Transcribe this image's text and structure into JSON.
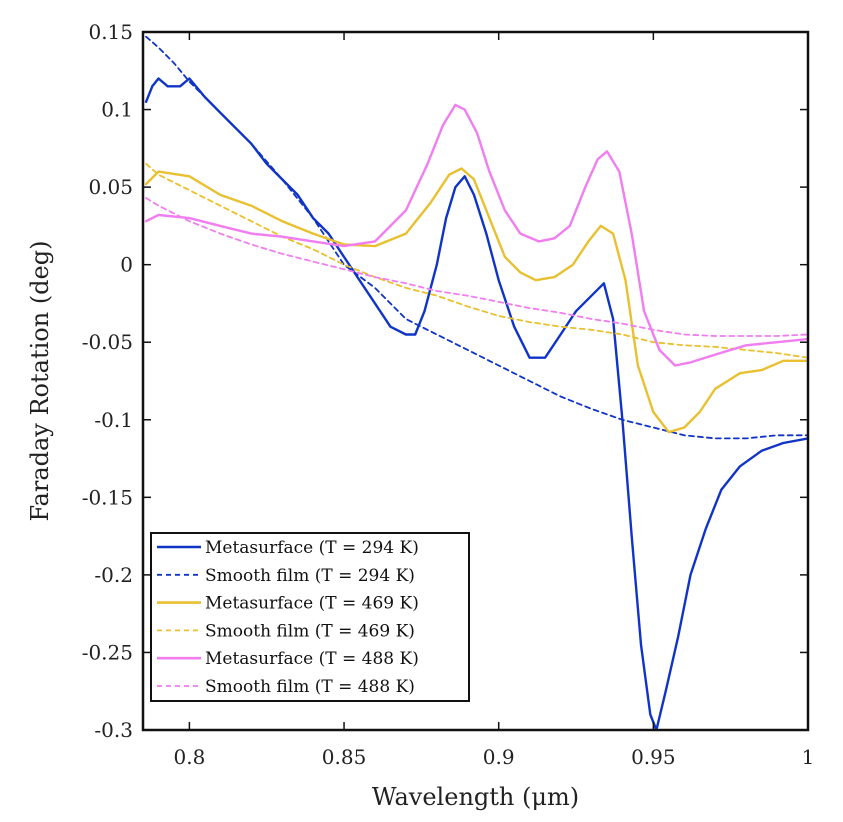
{
  "chart_data": {
    "type": "line",
    "xlabel": "Wavelength (μm)",
    "ylabel": "Faraday Rotation (deg)",
    "xlim": [
      0.785,
      1.0
    ],
    "ylim": [
      -0.3,
      0.15
    ],
    "xticks": [
      0.8,
      0.85,
      0.9,
      0.95,
      1.0
    ],
    "xtick_labels": [
      "0.8",
      "0.85",
      "0.9",
      "0.95",
      "1"
    ],
    "yticks": [
      0.15,
      0.1,
      0.05,
      0,
      -0.05,
      -0.1,
      -0.15,
      -0.2,
      -0.25,
      -0.3
    ],
    "ytick_labels": [
      "0.15",
      "0.1",
      "0.05",
      "0",
      "-0.05",
      "-0.1",
      "-0.15",
      "-0.2",
      "-0.25",
      "-0.3"
    ],
    "grid": false,
    "legend_position": "bottom-left",
    "series": [
      {
        "name": "Metasurface (T = 294 K)",
        "color": "#1034c8",
        "style": "solid",
        "points": [
          [
            0.786,
            0.105
          ],
          [
            0.788,
            0.115
          ],
          [
            0.79,
            0.12
          ],
          [
            0.793,
            0.115
          ],
          [
            0.797,
            0.115
          ],
          [
            0.8,
            0.12
          ],
          [
            0.805,
            0.108
          ],
          [
            0.81,
            0.098
          ],
          [
            0.815,
            0.088
          ],
          [
            0.82,
            0.078
          ],
          [
            0.825,
            0.065
          ],
          [
            0.83,
            0.055
          ],
          [
            0.835,
            0.045
          ],
          [
            0.84,
            0.03
          ],
          [
            0.845,
            0.02
          ],
          [
            0.85,
            0.005
          ],
          [
            0.855,
            -0.01
          ],
          [
            0.86,
            -0.025
          ],
          [
            0.865,
            -0.04
          ],
          [
            0.87,
            -0.045
          ],
          [
            0.873,
            -0.045
          ],
          [
            0.876,
            -0.03
          ],
          [
            0.88,
            0.0
          ],
          [
            0.883,
            0.03
          ],
          [
            0.886,
            0.05
          ],
          [
            0.889,
            0.057
          ],
          [
            0.892,
            0.045
          ],
          [
            0.896,
            0.02
          ],
          [
            0.9,
            -0.01
          ],
          [
            0.905,
            -0.04
          ],
          [
            0.91,
            -0.06
          ],
          [
            0.915,
            -0.06
          ],
          [
            0.92,
            -0.045
          ],
          [
            0.925,
            -0.03
          ],
          [
            0.93,
            -0.02
          ],
          [
            0.934,
            -0.012
          ],
          [
            0.937,
            -0.035
          ],
          [
            0.94,
            -0.1
          ],
          [
            0.943,
            -0.175
          ],
          [
            0.946,
            -0.245
          ],
          [
            0.949,
            -0.29
          ],
          [
            0.951,
            -0.3
          ],
          [
            0.954,
            -0.275
          ],
          [
            0.958,
            -0.24
          ],
          [
            0.962,
            -0.2
          ],
          [
            0.967,
            -0.17
          ],
          [
            0.972,
            -0.145
          ],
          [
            0.978,
            -0.13
          ],
          [
            0.985,
            -0.12
          ],
          [
            0.992,
            -0.115
          ],
          [
            1.0,
            -0.112
          ]
        ]
      },
      {
        "name": "Smooth film (T = 294 K)",
        "color": "#1034c8",
        "style": "dashed",
        "points": [
          [
            0.786,
            0.147
          ],
          [
            0.79,
            0.14
          ],
          [
            0.795,
            0.13
          ],
          [
            0.8,
            0.118
          ],
          [
            0.81,
            0.098
          ],
          [
            0.82,
            0.078
          ],
          [
            0.83,
            0.055
          ],
          [
            0.84,
            0.03
          ],
          [
            0.85,
            0.0
          ],
          [
            0.86,
            -0.015
          ],
          [
            0.87,
            -0.035
          ],
          [
            0.88,
            -0.045
          ],
          [
            0.89,
            -0.055
          ],
          [
            0.9,
            -0.065
          ],
          [
            0.91,
            -0.075
          ],
          [
            0.92,
            -0.085
          ],
          [
            0.93,
            -0.093
          ],
          [
            0.94,
            -0.1
          ],
          [
            0.95,
            -0.105
          ],
          [
            0.96,
            -0.11
          ],
          [
            0.97,
            -0.112
          ],
          [
            0.98,
            -0.112
          ],
          [
            0.99,
            -0.11
          ],
          [
            1.0,
            -0.11
          ]
        ]
      },
      {
        "name": "Metasurface (T = 469 K)",
        "color": "#e8c030",
        "style": "solid",
        "points": [
          [
            0.786,
            0.052
          ],
          [
            0.79,
            0.06
          ],
          [
            0.8,
            0.057
          ],
          [
            0.81,
            0.045
          ],
          [
            0.82,
            0.038
          ],
          [
            0.83,
            0.028
          ],
          [
            0.84,
            0.02
          ],
          [
            0.85,
            0.013
          ],
          [
            0.86,
            0.012
          ],
          [
            0.87,
            0.02
          ],
          [
            0.878,
            0.04
          ],
          [
            0.884,
            0.058
          ],
          [
            0.888,
            0.062
          ],
          [
            0.892,
            0.055
          ],
          [
            0.897,
            0.03
          ],
          [
            0.902,
            0.005
          ],
          [
            0.907,
            -0.005
          ],
          [
            0.912,
            -0.01
          ],
          [
            0.918,
            -0.008
          ],
          [
            0.924,
            0.0
          ],
          [
            0.929,
            0.015
          ],
          [
            0.933,
            0.025
          ],
          [
            0.937,
            0.02
          ],
          [
            0.941,
            -0.01
          ],
          [
            0.945,
            -0.065
          ],
          [
            0.95,
            -0.095
          ],
          [
            0.955,
            -0.108
          ],
          [
            0.96,
            -0.105
          ],
          [
            0.965,
            -0.095
          ],
          [
            0.97,
            -0.08
          ],
          [
            0.978,
            -0.07
          ],
          [
            0.985,
            -0.068
          ],
          [
            0.992,
            -0.062
          ],
          [
            1.0,
            -0.062
          ]
        ]
      },
      {
        "name": "Smooth film (T = 469 K)",
        "color": "#e8c030",
        "style": "dashed",
        "points": [
          [
            0.786,
            0.065
          ],
          [
            0.79,
            0.058
          ],
          [
            0.8,
            0.048
          ],
          [
            0.81,
            0.038
          ],
          [
            0.82,
            0.028
          ],
          [
            0.83,
            0.018
          ],
          [
            0.84,
            0.01
          ],
          [
            0.85,
            0.0
          ],
          [
            0.86,
            -0.008
          ],
          [
            0.87,
            -0.015
          ],
          [
            0.88,
            -0.02
          ],
          [
            0.89,
            -0.027
          ],
          [
            0.9,
            -0.033
          ],
          [
            0.91,
            -0.037
          ],
          [
            0.92,
            -0.04
          ],
          [
            0.93,
            -0.042
          ],
          [
            0.94,
            -0.045
          ],
          [
            0.95,
            -0.05
          ],
          [
            0.96,
            -0.052
          ],
          [
            0.97,
            -0.053
          ],
          [
            0.98,
            -0.055
          ],
          [
            0.99,
            -0.057
          ],
          [
            1.0,
            -0.06
          ]
        ]
      },
      {
        "name": "Metasurface (T = 488 K)",
        "color": "#f07ef0",
        "style": "solid",
        "points": [
          [
            0.786,
            0.028
          ],
          [
            0.79,
            0.032
          ],
          [
            0.8,
            0.03
          ],
          [
            0.81,
            0.025
          ],
          [
            0.82,
            0.02
          ],
          [
            0.83,
            0.018
          ],
          [
            0.84,
            0.015
          ],
          [
            0.85,
            0.012
          ],
          [
            0.86,
            0.015
          ],
          [
            0.87,
            0.035
          ],
          [
            0.877,
            0.065
          ],
          [
            0.882,
            0.09
          ],
          [
            0.886,
            0.103
          ],
          [
            0.889,
            0.1
          ],
          [
            0.893,
            0.085
          ],
          [
            0.897,
            0.06
          ],
          [
            0.902,
            0.035
          ],
          [
            0.907,
            0.02
          ],
          [
            0.913,
            0.015
          ],
          [
            0.918,
            0.017
          ],
          [
            0.923,
            0.025
          ],
          [
            0.928,
            0.05
          ],
          [
            0.932,
            0.068
          ],
          [
            0.935,
            0.073
          ],
          [
            0.939,
            0.06
          ],
          [
            0.943,
            0.02
          ],
          [
            0.947,
            -0.03
          ],
          [
            0.952,
            -0.055
          ],
          [
            0.957,
            -0.065
          ],
          [
            0.962,
            -0.063
          ],
          [
            0.97,
            -0.058
          ],
          [
            0.98,
            -0.052
          ],
          [
            0.99,
            -0.05
          ],
          [
            1.0,
            -0.048
          ]
        ]
      },
      {
        "name": "Smooth film (T = 488 K)",
        "color": "#f07ef0",
        "style": "dashed",
        "points": [
          [
            0.786,
            0.043
          ],
          [
            0.79,
            0.038
          ],
          [
            0.8,
            0.028
          ],
          [
            0.81,
            0.02
          ],
          [
            0.82,
            0.013
          ],
          [
            0.83,
            0.007
          ],
          [
            0.84,
            0.002
          ],
          [
            0.85,
            -0.003
          ],
          [
            0.86,
            -0.008
          ],
          [
            0.87,
            -0.012
          ],
          [
            0.88,
            -0.017
          ],
          [
            0.89,
            -0.02
          ],
          [
            0.9,
            -0.024
          ],
          [
            0.91,
            -0.028
          ],
          [
            0.92,
            -0.031
          ],
          [
            0.93,
            -0.035
          ],
          [
            0.94,
            -0.038
          ],
          [
            0.95,
            -0.042
          ],
          [
            0.96,
            -0.045
          ],
          [
            0.97,
            -0.046
          ],
          [
            0.98,
            -0.046
          ],
          [
            0.99,
            -0.046
          ],
          [
            1.0,
            -0.045
          ]
        ]
      }
    ]
  }
}
